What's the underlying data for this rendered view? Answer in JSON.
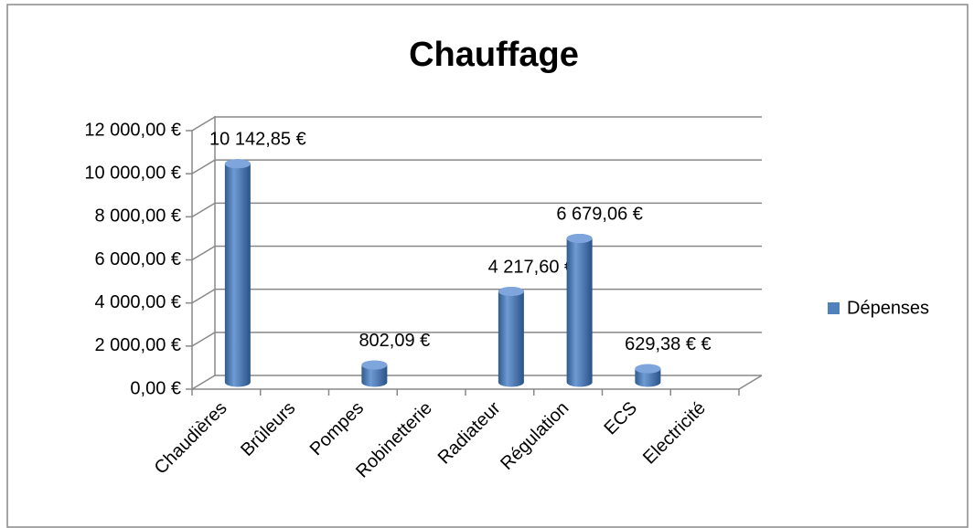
{
  "chart_data": {
    "type": "bar3d",
    "title": "Chauffage",
    "categories": [
      "Chaudières",
      "Brûleurs",
      "Pompes",
      "Robinetterie",
      "Radiateur",
      "Régulation",
      "ECS",
      "Electricité"
    ],
    "series": [
      {
        "name": "Dépenses",
        "color": "#4f81bd",
        "values": [
          10142.85,
          null,
          802.09,
          null,
          4217.6,
          6679.06,
          629.38,
          null
        ],
        "value_labels": [
          "10 142,85 €",
          null,
          "802,09 €",
          null,
          "4 217,60 €",
          "6 679,06 €",
          "629,38 € €",
          null
        ]
      }
    ],
    "ylim": [
      0,
      12000
    ],
    "yticks": [
      {
        "value": 0,
        "label": "0,00 €"
      },
      {
        "value": 2000,
        "label": "2 000,00 €"
      },
      {
        "value": 4000,
        "label": "4 000,00 €"
      },
      {
        "value": 6000,
        "label": "6 000,00 €"
      },
      {
        "value": 8000,
        "label": "8 000,00 €"
      },
      {
        "value": 10000,
        "label": "10 000,00 €"
      },
      {
        "value": 12000,
        "label": "12 000,00 €"
      }
    ],
    "grid": true,
    "legend": "right"
  }
}
